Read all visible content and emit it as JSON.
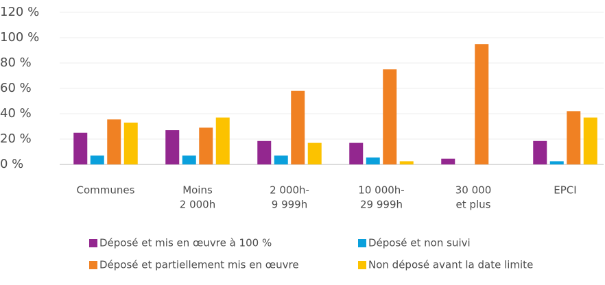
{
  "chart_data": {
    "type": "bar",
    "categories": [
      [
        "Communes"
      ],
      [
        "Moins",
        "2 000h"
      ],
      [
        "2 000h-",
        "9 999h"
      ],
      [
        "10 000h-",
        "29 999h"
      ],
      [
        "30 000",
        "et plus"
      ],
      [
        "EPCI"
      ]
    ],
    "series": [
      {
        "name": "Déposé et mis en œuvre à 100 %",
        "color": "#93278f",
        "values": [
          25,
          27,
          18.5,
          17,
          4.5,
          18.5
        ]
      },
      {
        "name": "Déposé et non suivi",
        "color": "#0aa0dc",
        "values": [
          7,
          7,
          7,
          5.5,
          0,
          2.5
        ]
      },
      {
        "name": "Déposé et partiellement mis en œuvre",
        "color": "#f08123",
        "values": [
          35.5,
          29,
          58,
          75,
          95,
          42
        ]
      },
      {
        "name": "Non déposé avant la date limite",
        "color": "#fcc200",
        "values": [
          33,
          37,
          17,
          2.5,
          0,
          37
        ]
      }
    ],
    "ylim": [
      0,
      120
    ],
    "yticks": [
      {
        "value": 0,
        "label": "0 %"
      },
      {
        "value": 20,
        "label": "20 %"
      },
      {
        "value": 40,
        "label": "40 %"
      },
      {
        "value": 60,
        "label": "60 %"
      },
      {
        "value": 80,
        "label": "80 %"
      },
      {
        "value": 100,
        "label": "100 %"
      },
      {
        "value": 120,
        "label": "120 %"
      }
    ],
    "grid": true
  }
}
